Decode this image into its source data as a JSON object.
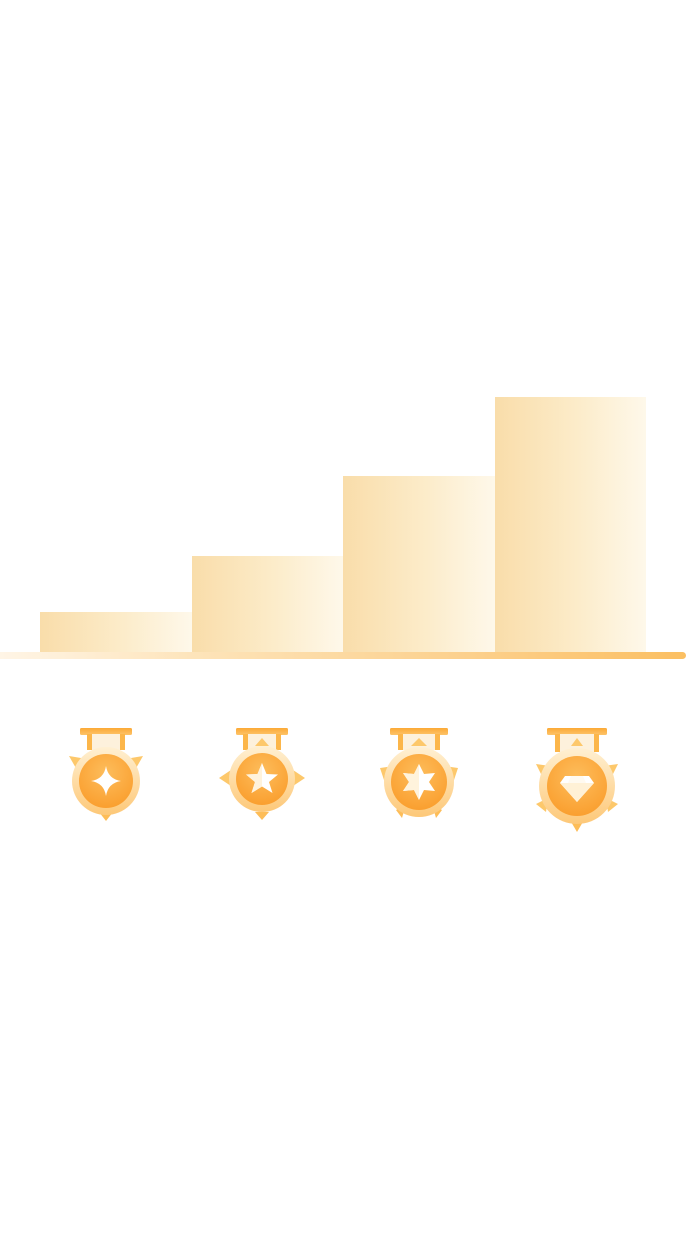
{
  "levels": [
    {
      "badge_icon": "four-point-sparkle-icon",
      "relative_height": 0.16
    },
    {
      "badge_icon": "star-icon",
      "relative_height": 0.38
    },
    {
      "badge_icon": "six-point-star-icon",
      "relative_height": 0.69
    },
    {
      "badge_icon": "diamond-icon",
      "relative_height": 1.0
    }
  ],
  "colors": {
    "step_light": "#fef8ea",
    "step_dark": "#f9ddaa",
    "medal_orange": "#fbad3c",
    "medal_ring": "#fdd58c",
    "ribbon": "#fca935",
    "baseline_end": "#fbbf62"
  }
}
